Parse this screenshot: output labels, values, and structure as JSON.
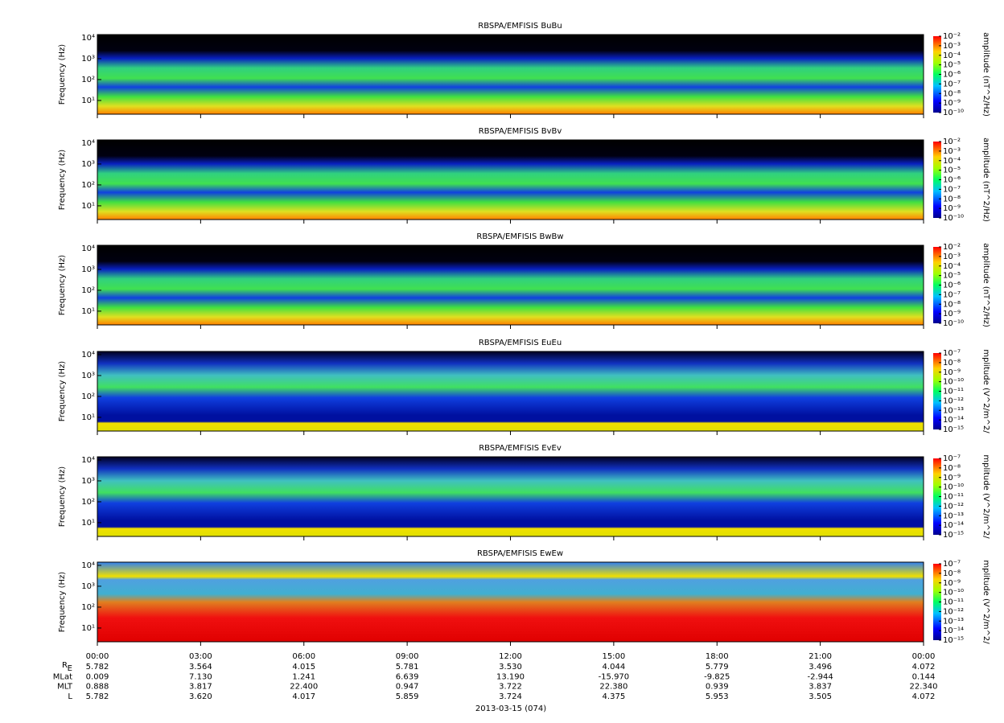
{
  "chart_data": [
    {
      "type": "spectrogram",
      "title": "RBSPA/EMFISIS  BuBu",
      "ylabel": "Frequency (Hz)",
      "ylog": true,
      "ylim": [
        2.2,
        14200
      ],
      "yticks": [
        {
          "value": 10,
          "label": "10¹"
        },
        {
          "value": 100,
          "label": "10²"
        },
        {
          "value": 1000,
          "label": "10³"
        },
        {
          "value": 10000,
          "label": "10⁴"
        }
      ],
      "zlabel": "amplitude (nT^2/Hz)",
      "zlog": true,
      "zlim": [
        1e-10,
        0.01
      ],
      "zticks": [
        {
          "value": 1e-10,
          "label": "10⁻¹⁰"
        },
        {
          "value": 1e-09,
          "label": "10⁻⁹"
        },
        {
          "value": 1e-08,
          "label": "10⁻⁸"
        },
        {
          "value": 1e-07,
          "label": "10⁻⁷"
        },
        {
          "value": 1e-06,
          "label": "10⁻⁶"
        },
        {
          "value": 1e-05,
          "label": "10⁻⁵"
        },
        {
          "value": 0.0001,
          "label": "10⁻⁴"
        },
        {
          "value": 0.001,
          "label": "10⁻³"
        },
        {
          "value": 0.01,
          "label": "10⁻²"
        }
      ]
    },
    {
      "type": "spectrogram",
      "title": "RBSPA/EMFISIS  BvBv",
      "ylabel": "Frequency (Hz)",
      "ylog": true,
      "ylim": [
        2.2,
        14200
      ],
      "yticks": [
        {
          "value": 10,
          "label": "10¹"
        },
        {
          "value": 100,
          "label": "10²"
        },
        {
          "value": 1000,
          "label": "10³"
        },
        {
          "value": 10000,
          "label": "10⁴"
        }
      ],
      "zlabel": "amplitude (nT^2/Hz)",
      "zlog": true,
      "zlim": [
        1e-10,
        0.01
      ],
      "zticks": [
        {
          "value": 1e-10,
          "label": "10⁻¹⁰"
        },
        {
          "value": 1e-09,
          "label": "10⁻⁹"
        },
        {
          "value": 1e-08,
          "label": "10⁻⁸"
        },
        {
          "value": 1e-07,
          "label": "10⁻⁷"
        },
        {
          "value": 1e-06,
          "label": "10⁻⁶"
        },
        {
          "value": 1e-05,
          "label": "10⁻⁵"
        },
        {
          "value": 0.0001,
          "label": "10⁻⁴"
        },
        {
          "value": 0.001,
          "label": "10⁻³"
        },
        {
          "value": 0.01,
          "label": "10⁻²"
        }
      ]
    },
    {
      "type": "spectrogram",
      "title": "RBSPA/EMFISIS  BwBw",
      "ylabel": "Frequency (Hz)",
      "ylog": true,
      "ylim": [
        2.2,
        14200
      ],
      "yticks": [
        {
          "value": 10,
          "label": "10¹"
        },
        {
          "value": 100,
          "label": "10²"
        },
        {
          "value": 1000,
          "label": "10³"
        },
        {
          "value": 10000,
          "label": "10⁴"
        }
      ],
      "zlabel": "amplitude (nT^2/Hz)",
      "zlog": true,
      "zlim": [
        1e-10,
        0.01
      ],
      "zticks": [
        {
          "value": 1e-10,
          "label": "10⁻¹⁰"
        },
        {
          "value": 1e-09,
          "label": "10⁻⁹"
        },
        {
          "value": 1e-08,
          "label": "10⁻⁸"
        },
        {
          "value": 1e-07,
          "label": "10⁻⁷"
        },
        {
          "value": 1e-06,
          "label": "10⁻⁶"
        },
        {
          "value": 1e-05,
          "label": "10⁻⁵"
        },
        {
          "value": 0.0001,
          "label": "10⁻⁴"
        },
        {
          "value": 0.001,
          "label": "10⁻³"
        },
        {
          "value": 0.01,
          "label": "10⁻²"
        }
      ]
    },
    {
      "type": "spectrogram",
      "title": "RBSPA/EMFISIS  EuEu",
      "ylabel": "Frequency (Hz)",
      "ylog": true,
      "ylim": [
        2.2,
        14200
      ],
      "yticks": [
        {
          "value": 10,
          "label": "10¹"
        },
        {
          "value": 100,
          "label": "10²"
        },
        {
          "value": 1000,
          "label": "10³"
        },
        {
          "value": 10000,
          "label": "10⁴"
        }
      ],
      "zlabel": "mplitude (V^2/m^2/",
      "zlog": true,
      "zlim": [
        1e-15,
        1e-07
      ],
      "zticks": [
        {
          "value": 1e-15,
          "label": "10⁻¹⁵"
        },
        {
          "value": 1e-14,
          "label": "10⁻¹⁴"
        },
        {
          "value": 1e-13,
          "label": "10⁻¹³"
        },
        {
          "value": 1e-12,
          "label": "10⁻¹²"
        },
        {
          "value": 1e-11,
          "label": "10⁻¹¹"
        },
        {
          "value": 1e-10,
          "label": "10⁻¹⁰"
        },
        {
          "value": 1e-09,
          "label": "10⁻⁹"
        },
        {
          "value": 1e-08,
          "label": "10⁻⁸"
        },
        {
          "value": 1e-07,
          "label": "10⁻⁷"
        }
      ]
    },
    {
      "type": "spectrogram",
      "title": "RBSPA/EMFISIS  EvEv",
      "ylabel": "Frequency (Hz)",
      "ylog": true,
      "ylim": [
        2.2,
        14200
      ],
      "yticks": [
        {
          "value": 10,
          "label": "10¹"
        },
        {
          "value": 100,
          "label": "10²"
        },
        {
          "value": 1000,
          "label": "10³"
        },
        {
          "value": 10000,
          "label": "10⁴"
        }
      ],
      "zlabel": "mplitude (V^2/m^2/",
      "zlog": true,
      "zlim": [
        1e-15,
        1e-07
      ],
      "zticks": [
        {
          "value": 1e-15,
          "label": "10⁻¹⁵"
        },
        {
          "value": 1e-14,
          "label": "10⁻¹⁴"
        },
        {
          "value": 1e-13,
          "label": "10⁻¹³"
        },
        {
          "value": 1e-12,
          "label": "10⁻¹²"
        },
        {
          "value": 1e-11,
          "label": "10⁻¹¹"
        },
        {
          "value": 1e-10,
          "label": "10⁻¹⁰"
        },
        {
          "value": 1e-09,
          "label": "10⁻⁹"
        },
        {
          "value": 1e-08,
          "label": "10⁻⁸"
        },
        {
          "value": 1e-07,
          "label": "10⁻⁷"
        }
      ]
    },
    {
      "type": "spectrogram",
      "title": "RBSPA/EMFISIS  EwEw",
      "ylabel": "Frequency (Hz)",
      "ylog": true,
      "ylim": [
        2.2,
        14200
      ],
      "yticks": [
        {
          "value": 10,
          "label": "10¹"
        },
        {
          "value": 100,
          "label": "10²"
        },
        {
          "value": 1000,
          "label": "10³"
        },
        {
          "value": 10000,
          "label": "10⁴"
        }
      ],
      "zlabel": "mplitude (V^2/m^2/",
      "zlog": true,
      "zlim": [
        1e-15,
        1e-07
      ],
      "zticks": [
        {
          "value": 1e-15,
          "label": "10⁻¹⁵"
        },
        {
          "value": 1e-14,
          "label": "10⁻¹⁴"
        },
        {
          "value": 1e-13,
          "label": "10⁻¹³"
        },
        {
          "value": 1e-12,
          "label": "10⁻¹²"
        },
        {
          "value": 1e-11,
          "label": "10⁻¹¹"
        },
        {
          "value": 1e-10,
          "label": "10⁻¹⁰"
        },
        {
          "value": 1e-09,
          "label": "10⁻⁹"
        },
        {
          "value": 1e-08,
          "label": "10⁻⁸"
        },
        {
          "value": 1e-07,
          "label": "10⁻⁷"
        }
      ]
    }
  ],
  "x_axis": {
    "xlim": [
      0,
      24
    ],
    "xticks": [
      {
        "value": 0,
        "label": "00:00"
      },
      {
        "value": 3,
        "label": "03:00"
      },
      {
        "value": 6,
        "label": "06:00"
      },
      {
        "value": 9,
        "label": "09:00"
      },
      {
        "value": 12,
        "label": "12:00"
      },
      {
        "value": 15,
        "label": "15:00"
      },
      {
        "value": 18,
        "label": "18:00"
      },
      {
        "value": 21,
        "label": "21:00"
      },
      {
        "value": 24,
        "label": "00:00"
      }
    ],
    "date": "2013-03-15 (074)"
  },
  "ephemeris": [
    {
      "name": "R",
      "subscript": "E",
      "values": [
        "5.782",
        "3.564",
        "4.015",
        "5.781",
        "3.530",
        "4.044",
        "5.779",
        "3.496",
        "4.072"
      ]
    },
    {
      "name": "MLat",
      "values": [
        "0.009",
        "7.130",
        "1.241",
        "6.639",
        "13.190",
        "-15.970",
        "-9.825",
        "-2.944",
        "0.144"
      ]
    },
    {
      "name": "MLT",
      "values": [
        "0.888",
        "3.817",
        "22.400",
        "0.947",
        "3.722",
        "22.380",
        "0.939",
        "3.837",
        "22.340"
      ]
    },
    {
      "name": "L",
      "values": [
        "5.782",
        "3.620",
        "4.017",
        "5.859",
        "3.724",
        "4.375",
        "5.953",
        "3.505",
        "4.072"
      ]
    }
  ]
}
